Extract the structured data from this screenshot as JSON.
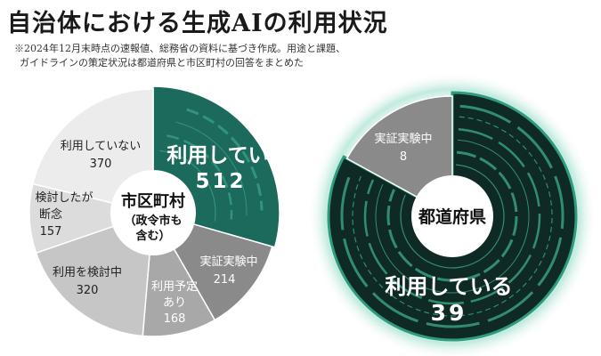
{
  "header": {
    "title": "自治体における生成AIの利用状況",
    "note_line1": "※2024年12月末時点の速報値、総務省の資料に基づき作成。用途と課題、",
    "note_line2": "ガイドラインの策定状況は都道府県と市区町村の回答をまとめた"
  },
  "colors": {
    "using": "#1b6a5c",
    "trial": "#8a8a8a",
    "planned": "#a8a8a8",
    "considering": "#c6c6c6",
    "gave_up": "#dcdcdc",
    "not_using": "#ececec",
    "dark_bg": "#0f2a24",
    "rim": "#2f9b7f"
  },
  "chart_data": [
    {
      "type": "pie",
      "center_label": [
        "市区町村",
        "（政令市も",
        "含む）"
      ],
      "categories": [
        "利用している",
        "実証実験中",
        "利用予定あり",
        "利用を検討中",
        "検討したが断念",
        "利用していない"
      ],
      "values": [
        512,
        214,
        168,
        320,
        157,
        370
      ],
      "labels": [
        {
          "lines": [
            "利用している"
          ],
          "value": "512"
        },
        {
          "lines": [
            "実証実験中"
          ],
          "value": "214"
        },
        {
          "lines": [
            "利用予定",
            "あり"
          ],
          "value": "168"
        },
        {
          "lines": [
            "利用を検討中"
          ],
          "value": "320"
        },
        {
          "lines": [
            "検討したが",
            "断念"
          ],
          "value": "157"
        },
        {
          "lines": [
            "利用していない"
          ],
          "value": "370"
        }
      ]
    },
    {
      "type": "pie",
      "center_label": [
        "都道府県"
      ],
      "categories": [
        "利用している",
        "実証実験中"
      ],
      "values": [
        39,
        8
      ],
      "labels": [
        {
          "lines": [
            "利用している"
          ],
          "value": "39"
        },
        {
          "lines": [
            "実証実験中"
          ],
          "value": "8"
        }
      ]
    }
  ]
}
